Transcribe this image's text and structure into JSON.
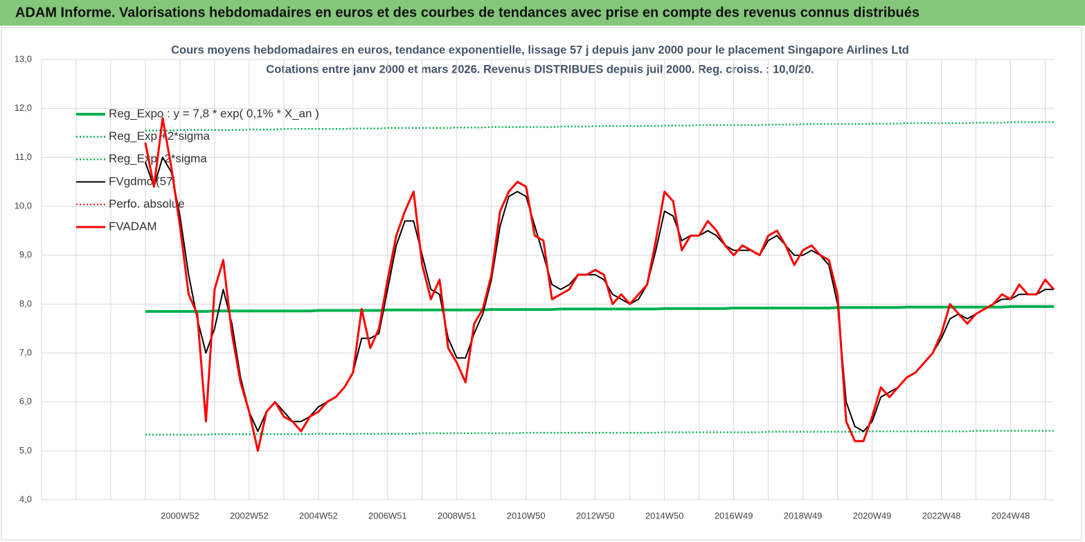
{
  "header": {
    "title": "ADAM Informe. Valorisations hebdomadaires en euros et des courbes de tendances avec prise en compte des revenus connus distribués"
  },
  "chart_data": {
    "type": "line",
    "title": "Cours moyens hebdomadaires en euros, tendance exponentielle, lissage 57 j depuis janv 2000 pour le placement Singapore Airlines Ltd",
    "subtitle": "Cotations entre janv 2000 et mars 2026. Revenus DISTRIBUES depuis juil 2000. Reg. croiss. : 10,0/20.",
    "categories": [
      null,
      null,
      null,
      null,
      null,
      null,
      null,
      null,
      null,
      null,
      null,
      null,
      null,
      null,
      null,
      null,
      "2000W52",
      null,
      null,
      null,
      null,
      null,
      null,
      null,
      "2002W52",
      null,
      null,
      null,
      null,
      null,
      null,
      null,
      "2004W52",
      null,
      null,
      null,
      null,
      null,
      null,
      null,
      "2006W51",
      null,
      null,
      null,
      null,
      null,
      null,
      null,
      "2008W51",
      null,
      null,
      null,
      null,
      null,
      null,
      null,
      "2010W50",
      null,
      null,
      null,
      null,
      null,
      null,
      null,
      "2012W50",
      null,
      null,
      null,
      null,
      null,
      null,
      null,
      "2014W50",
      null,
      null,
      null,
      null,
      null,
      null,
      null,
      "2016W49",
      null,
      null,
      null,
      null,
      null,
      null,
      null,
      "2018W49",
      null,
      null,
      null,
      null,
      null,
      null,
      null,
      "2020W49",
      null,
      null,
      null,
      null,
      null,
      null,
      null,
      "2022W48",
      null,
      null,
      null,
      null,
      null,
      null,
      null,
      "2024W48",
      null,
      null,
      null,
      null,
      null
    ],
    "ylim": [
      4,
      13
    ],
    "yticks": [
      {
        "value": 4,
        "label": "4,0"
      },
      {
        "value": 5,
        "label": "5,0"
      },
      {
        "value": 6,
        "label": "6,0"
      },
      {
        "value": 7,
        "label": "7,0"
      },
      {
        "value": 8,
        "label": "8,0"
      },
      {
        "value": 9,
        "label": "9,0"
      },
      {
        "value": 10,
        "label": "10,0"
      },
      {
        "value": 11,
        "label": "11,0"
      },
      {
        "value": 12,
        "label": "12,0"
      },
      {
        "value": 13,
        "label": "13,0"
      }
    ],
    "grid": true,
    "legend": "upper left",
    "series": [
      {
        "name": "Reg_Expo : y = 7,8 * exp( 0,1% *  X_an )",
        "color": "#00b050",
        "linestyle": "solid",
        "linewidth": 4,
        "values": [
          null,
          null,
          null,
          null,
          null,
          null,
          null,
          null,
          null,
          null,
          null,
          null,
          7.85,
          7.85,
          7.85,
          7.85,
          7.85,
          7.85,
          7.85,
          7.85,
          7.86,
          7.86,
          7.86,
          7.86,
          7.86,
          7.86,
          7.86,
          7.86,
          7.86,
          7.86,
          7.86,
          7.86,
          7.87,
          7.87,
          7.87,
          7.87,
          7.87,
          7.87,
          7.87,
          7.87,
          7.88,
          7.88,
          7.88,
          7.88,
          7.88,
          7.88,
          7.88,
          7.88,
          7.88,
          7.88,
          7.88,
          7.88,
          7.89,
          7.89,
          7.89,
          7.89,
          7.89,
          7.89,
          7.89,
          7.89,
          7.9,
          7.9,
          7.9,
          7.9,
          7.9,
          7.9,
          7.9,
          7.9,
          7.9,
          7.9,
          7.9,
          7.9,
          7.91,
          7.91,
          7.91,
          7.91,
          7.91,
          7.91,
          7.91,
          7.91,
          7.92,
          7.92,
          7.92,
          7.92,
          7.92,
          7.92,
          7.92,
          7.92,
          7.92,
          7.92,
          7.92,
          7.92,
          7.93,
          7.93,
          7.93,
          7.93,
          7.93,
          7.93,
          7.93,
          7.93,
          7.94,
          7.94,
          7.94,
          7.94,
          7.94,
          7.94,
          7.94,
          7.94,
          7.94,
          7.94,
          7.94,
          7.94,
          7.95,
          7.95,
          7.95,
          7.95,
          7.95,
          7.95
        ]
      },
      {
        "name": "Reg_Exp +2*sigma",
        "color": "#00b050",
        "linestyle": "dotted",
        "linewidth": 2.5,
        "values": [
          null,
          null,
          null,
          null,
          null,
          null,
          null,
          null,
          null,
          null,
          null,
          null,
          11.55,
          11.55,
          11.55,
          11.55,
          11.56,
          11.56,
          11.56,
          11.56,
          11.56,
          11.56,
          11.56,
          11.56,
          11.57,
          11.57,
          11.57,
          11.57,
          11.58,
          11.58,
          11.58,
          11.58,
          11.58,
          11.58,
          11.58,
          11.58,
          11.59,
          11.59,
          11.59,
          11.59,
          11.6,
          11.6,
          11.6,
          11.6,
          11.6,
          11.6,
          11.6,
          11.6,
          11.61,
          11.61,
          11.61,
          11.61,
          11.62,
          11.62,
          11.62,
          11.62,
          11.62,
          11.62,
          11.62,
          11.62,
          11.63,
          11.63,
          11.63,
          11.63,
          11.64,
          11.64,
          11.64,
          11.64,
          11.64,
          11.64,
          11.64,
          11.64,
          11.65,
          11.65,
          11.65,
          11.65,
          11.66,
          11.66,
          11.66,
          11.66,
          11.66,
          11.66,
          11.66,
          11.66,
          11.67,
          11.67,
          11.67,
          11.67,
          11.68,
          11.68,
          11.68,
          11.68,
          11.68,
          11.68,
          11.68,
          11.68,
          11.69,
          11.69,
          11.69,
          11.69,
          11.7,
          11.7,
          11.7,
          11.7,
          11.7,
          11.7,
          11.7,
          11.7,
          11.71,
          11.71,
          11.71,
          11.71,
          11.72,
          11.72,
          11.72,
          11.72,
          11.72,
          11.72
        ]
      },
      {
        "name": "Reg_Exp -2*sigma",
        "color": "#00b050",
        "linestyle": "dotted",
        "linewidth": 2.5,
        "values": [
          null,
          null,
          null,
          null,
          null,
          null,
          null,
          null,
          null,
          null,
          null,
          null,
          5.33,
          5.33,
          5.33,
          5.33,
          5.33,
          5.33,
          5.33,
          5.33,
          5.34,
          5.34,
          5.34,
          5.34,
          5.34,
          5.34,
          5.34,
          5.34,
          5.34,
          5.34,
          5.34,
          5.34,
          5.35,
          5.35,
          5.35,
          5.35,
          5.35,
          5.35,
          5.35,
          5.35,
          5.35,
          5.35,
          5.35,
          5.35,
          5.36,
          5.36,
          5.36,
          5.36,
          5.36,
          5.36,
          5.36,
          5.36,
          5.36,
          5.36,
          5.36,
          5.36,
          5.37,
          5.37,
          5.37,
          5.37,
          5.37,
          5.37,
          5.37,
          5.37,
          5.37,
          5.37,
          5.37,
          5.37,
          5.37,
          5.37,
          5.37,
          5.37,
          5.38,
          5.38,
          5.38,
          5.38,
          5.38,
          5.38,
          5.38,
          5.38,
          5.38,
          5.38,
          5.38,
          5.38,
          5.39,
          5.39,
          5.39,
          5.39,
          5.39,
          5.39,
          5.39,
          5.39,
          5.39,
          5.39,
          5.39,
          5.39,
          5.4,
          5.4,
          5.4,
          5.4,
          5.4,
          5.4,
          5.4,
          5.4,
          5.4,
          5.4,
          5.4,
          5.4,
          5.41,
          5.41,
          5.41,
          5.41,
          5.41,
          5.41,
          5.41,
          5.41,
          5.41,
          5.41
        ]
      },
      {
        "name": "FVgdmc (57j",
        "color": "#000000",
        "linestyle": "solid",
        "linewidth": 2,
        "values": [
          null,
          null,
          null,
          null,
          null,
          null,
          null,
          null,
          null,
          null,
          null,
          null,
          10.9,
          10.4,
          11.0,
          10.7,
          9.8,
          8.6,
          7.7,
          7.0,
          7.5,
          8.3,
          7.6,
          6.5,
          5.8,
          5.4,
          5.8,
          6.0,
          5.8,
          5.6,
          5.6,
          5.7,
          5.9,
          6.0,
          6.1,
          6.3,
          6.6,
          7.3,
          7.3,
          7.4,
          8.3,
          9.2,
          9.7,
          9.7,
          9.0,
          8.3,
          8.2,
          7.3,
          6.9,
          6.9,
          7.4,
          7.8,
          8.5,
          9.6,
          10.2,
          10.3,
          10.2,
          9.6,
          9.0,
          8.4,
          8.3,
          8.4,
          8.6,
          8.6,
          8.6,
          8.5,
          8.2,
          8.1,
          8.0,
          8.1,
          8.4,
          9.1,
          9.9,
          9.8,
          9.3,
          9.4,
          9.4,
          9.5,
          9.4,
          9.2,
          9.1,
          9.1,
          9.1,
          9.0,
          9.3,
          9.4,
          9.2,
          9.0,
          9.0,
          9.1,
          9.0,
          8.8,
          8.0,
          6.0,
          5.5,
          5.4,
          5.6,
          6.1,
          6.2,
          6.3,
          6.5,
          6.6,
          6.8,
          7.0,
          7.3,
          7.7,
          7.8,
          7.7,
          7.8,
          7.9,
          8.0,
          8.1,
          8.1,
          8.2,
          8.2,
          8.2,
          8.3,
          8.3
        ]
      },
      {
        "name": "Perfo. absolue",
        "color": "#ff0000",
        "linestyle": "dotted",
        "linewidth": 2,
        "values": [
          null,
          null,
          null,
          null,
          null,
          null,
          null,
          null,
          null,
          null,
          null,
          null,
          null,
          null,
          null,
          null,
          null,
          null,
          null,
          null,
          null,
          null,
          null,
          null,
          null,
          null,
          null,
          null,
          null,
          null,
          null,
          null,
          null,
          null,
          null,
          null,
          null,
          null,
          null,
          null,
          null,
          null,
          null,
          null,
          null,
          null,
          null,
          null,
          null,
          null,
          null,
          null,
          null,
          null,
          null,
          null,
          null,
          null,
          null,
          null,
          null,
          null,
          null,
          null,
          null,
          null,
          null,
          null,
          null,
          null,
          null,
          null,
          null,
          null,
          null,
          null,
          null,
          null,
          null,
          null,
          null,
          null,
          null,
          null,
          null,
          null,
          null,
          null,
          null,
          null,
          null,
          null,
          null,
          null,
          null,
          null,
          null,
          null,
          null,
          null,
          null,
          null,
          null,
          null,
          null,
          null,
          null,
          null,
          null,
          null,
          null,
          null,
          null,
          null,
          null,
          null,
          null,
          null
        ]
      },
      {
        "name": "FVADAM",
        "color": "#ff0000",
        "linestyle": "solid",
        "linewidth": 3,
        "values": [
          null,
          null,
          null,
          null,
          null,
          null,
          null,
          null,
          null,
          null,
          null,
          null,
          11.3,
          10.4,
          11.8,
          10.8,
          9.6,
          8.2,
          7.8,
          5.6,
          8.3,
          8.9,
          7.4,
          6.4,
          5.8,
          5.0,
          5.8,
          6.0,
          5.7,
          5.6,
          5.4,
          5.7,
          5.8,
          6.0,
          6.1,
          6.3,
          6.6,
          7.9,
          7.1,
          7.5,
          8.5,
          9.4,
          9.9,
          10.3,
          8.8,
          8.1,
          8.5,
          7.1,
          6.8,
          6.4,
          7.6,
          7.9,
          8.6,
          9.9,
          10.3,
          10.5,
          10.4,
          9.4,
          9.3,
          8.1,
          8.2,
          8.3,
          8.6,
          8.6,
          8.7,
          8.6,
          8.0,
          8.2,
          8.0,
          8.2,
          8.4,
          9.3,
          10.3,
          10.1,
          9.1,
          9.4,
          9.4,
          9.7,
          9.5,
          9.2,
          9.0,
          9.2,
          9.1,
          9.0,
          9.4,
          9.5,
          9.2,
          8.8,
          9.1,
          9.2,
          9.0,
          8.9,
          8.2,
          5.6,
          5.2,
          5.2,
          5.7,
          6.3,
          6.1,
          6.3,
          6.5,
          6.6,
          6.8,
          7.0,
          7.4,
          8.0,
          7.8,
          7.6,
          7.8,
          7.9,
          8.0,
          8.2,
          8.1,
          8.4,
          8.2,
          8.2,
          8.5,
          8.3
        ]
      }
    ]
  }
}
